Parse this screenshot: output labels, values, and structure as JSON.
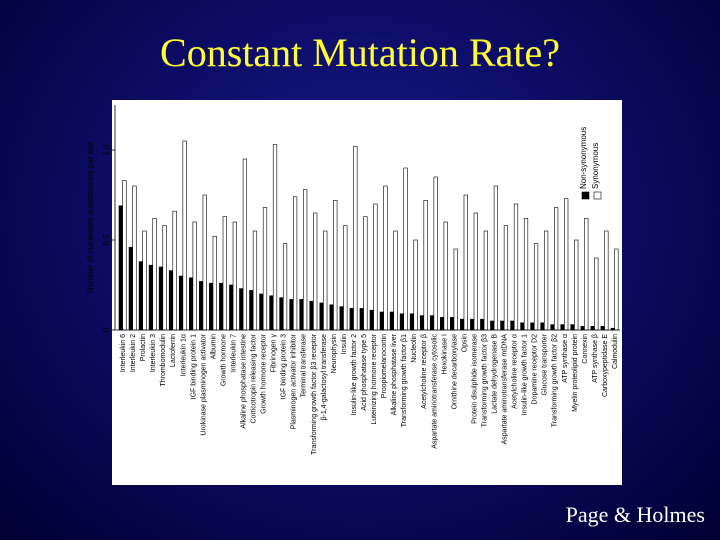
{
  "title": "Constant Mutation Rate?",
  "credit": "Page & Holmes",
  "chart_data": {
    "type": "bar",
    "y_label": "Number of nucleotide substitutions per site",
    "categories": [
      "Interleukin 6",
      "Interleukin 2",
      "Prolactin",
      "Interleukin 3",
      "Thrombomodulin",
      "Lactoferrin",
      "Interleukin 1α",
      "IGF binding protein 1",
      "Urokinase plasminogen activator",
      "Albumin",
      "Growth hormone",
      "Interleukin 7",
      "Alkaline phosphatase intestine",
      "Corticotropin releasing factor",
      "Growth hormone receptor",
      "Fibrinogen γ",
      "IGF binding protein 3",
      "Plasminogen activator inhibitor",
      "Terminal transferase",
      "Transforming growth factor β3 receptor",
      "β-1,4-galactosyl transferase",
      "Neurophysin",
      "Insulin",
      "Insulin-like growth factor 2",
      "Acid phosphatase type 5",
      "Luteinizing hormone receptor",
      "Proopiomelanocortin",
      "Alkaline phosphatase liver",
      "Transforming growth factor β1",
      "Nucleolin",
      "Acetylcholine receptor β",
      "Aspartate aminotransferase cytosolic",
      "Hexokinase I",
      "Ornithine decarboxylase",
      "Opsin",
      "Protein disulphide isomerase",
      "Transforming growth factor β3",
      "Lactate dehydrogenase B",
      "Aspartate aminotransferase mtDNA",
      "Acetylcholine receptor α",
      "Insulin-like growth factor 1",
      "Dopamine receptor D2",
      "Glucose transporter",
      "Transforming growth factor β2",
      "ATP synthase α",
      "Myelin proteolipid protein",
      "Connexin",
      "ATP synthase β",
      "Carboxypeptidase E",
      "Calmodulin"
    ],
    "series": [
      {
        "name": "Non-synonymous",
        "color": "#000000",
        "values": [
          0.69,
          0.46,
          0.38,
          0.36,
          0.35,
          0.33,
          0.3,
          0.29,
          0.27,
          0.26,
          0.26,
          0.25,
          0.23,
          0.22,
          0.2,
          0.19,
          0.18,
          0.17,
          0.17,
          0.16,
          0.15,
          0.14,
          0.13,
          0.12,
          0.12,
          0.11,
          0.1,
          0.1,
          0.09,
          0.09,
          0.08,
          0.08,
          0.07,
          0.07,
          0.06,
          0.06,
          0.06,
          0.05,
          0.05,
          0.05,
          0.04,
          0.04,
          0.04,
          0.03,
          0.03,
          0.03,
          0.02,
          0.02,
          0.02,
          0.01
        ]
      },
      {
        "name": "Synonymous",
        "color": "#ffffff",
        "values": [
          0.83,
          0.8,
          0.55,
          0.62,
          0.58,
          0.66,
          1.05,
          0.6,
          0.75,
          0.52,
          0.63,
          0.6,
          0.95,
          0.55,
          0.68,
          1.03,
          0.48,
          0.74,
          0.78,
          0.65,
          0.55,
          0.72,
          0.58,
          1.02,
          0.63,
          0.7,
          0.8,
          0.55,
          0.9,
          0.5,
          0.72,
          0.85,
          0.6,
          0.45,
          0.75,
          0.65,
          0.55,
          0.8,
          0.58,
          0.7,
          0.62,
          0.48,
          0.55,
          0.68,
          0.73,
          0.5,
          0.62,
          0.4,
          0.55,
          0.45
        ]
      }
    ],
    "ylim": [
      0,
      1.25
    ],
    "yticks": [
      0,
      0.5,
      {
        "value": 1,
        "label": "1.0"
      }
    ]
  }
}
